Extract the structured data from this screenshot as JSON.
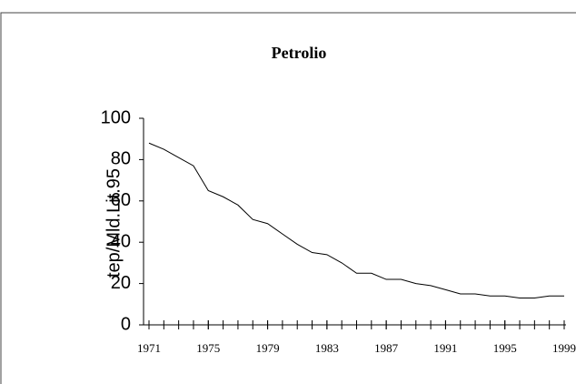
{
  "chart_data": {
    "type": "line",
    "title": "Petrolio",
    "ylabel": "tep/Mld.Lit.95",
    "x": [
      1971,
      1972,
      1973,
      1974,
      1975,
      1976,
      1977,
      1978,
      1979,
      1980,
      1981,
      1982,
      1983,
      1984,
      1985,
      1986,
      1987,
      1988,
      1989,
      1990,
      1991,
      1992,
      1993,
      1994,
      1995,
      1996,
      1997,
      1998,
      1999
    ],
    "series": [
      {
        "name": "Petrolio",
        "color": "#000000",
        "values": [
          88,
          85,
          81,
          77,
          65,
          62,
          58,
          51,
          49,
          44,
          39,
          35,
          34,
          30,
          25,
          25,
          22,
          22,
          20,
          19,
          17,
          15,
          15,
          14,
          14,
          13,
          13,
          14,
          14
        ]
      }
    ],
    "xlim": [
      1971,
      1999
    ],
    "xticks": [
      1971,
      1975,
      1979,
      1983,
      1987,
      1991,
      1995,
      1999
    ],
    "ylim": [
      0,
      100
    ],
    "yticks": [
      0,
      20,
      40,
      60,
      80,
      100
    ],
    "grid": false
  }
}
